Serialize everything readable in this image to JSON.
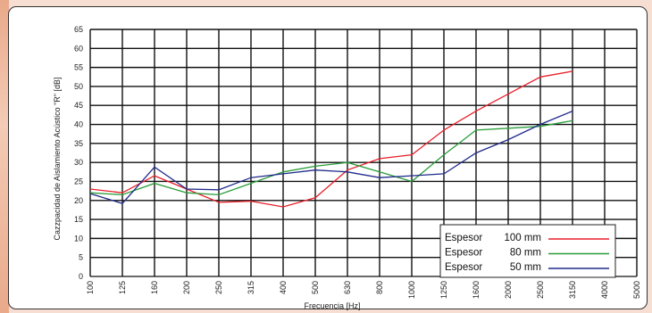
{
  "chart_data": {
    "type": "line",
    "title": "",
    "xlabel": "Frecuencia [Hz]",
    "ylabel": "Cazzpacidad de Aislamiento Acústico \"R\" [dB]",
    "x": [
      "100",
      "125",
      "160",
      "200",
      "250",
      "315",
      "400",
      "500",
      "630",
      "800",
      "1000",
      "1250",
      "1600",
      "2000",
      "2500",
      "3150",
      "4000",
      "5000"
    ],
    "ylim": [
      0,
      65
    ],
    "yticks": [
      "0",
      "5",
      "10",
      "15",
      "20",
      "25",
      "30",
      "35",
      "40",
      "45",
      "50",
      "55",
      "60",
      "65"
    ],
    "grid": true,
    "legend_position": "lower-right",
    "series": [
      {
        "label": "Espesor",
        "name": "100 mm",
        "color": "#e8202a",
        "values": [
          23,
          22,
          26.5,
          23,
          19.5,
          19.8,
          18.3,
          20.7,
          28,
          31,
          32,
          38.5,
          43.5,
          48,
          52.5,
          54,
          null,
          null
        ]
      },
      {
        "label": "Espesor",
        "name": "80 mm",
        "color": "#2a9d3a",
        "values": [
          22,
          21.5,
          24.5,
          22,
          21.5,
          24.5,
          27.5,
          29,
          30,
          27.5,
          25,
          32,
          38.5,
          39,
          39.5,
          41,
          null,
          null
        ]
      },
      {
        "label": "Espesor",
        "name": "50 mm",
        "color": "#1f2a8a",
        "values": [
          21.8,
          19.2,
          28.8,
          23,
          22.8,
          26,
          27,
          28,
          27.5,
          26,
          26.5,
          27,
          32.5,
          36,
          40,
          43.5,
          null,
          null
        ]
      }
    ]
  }
}
